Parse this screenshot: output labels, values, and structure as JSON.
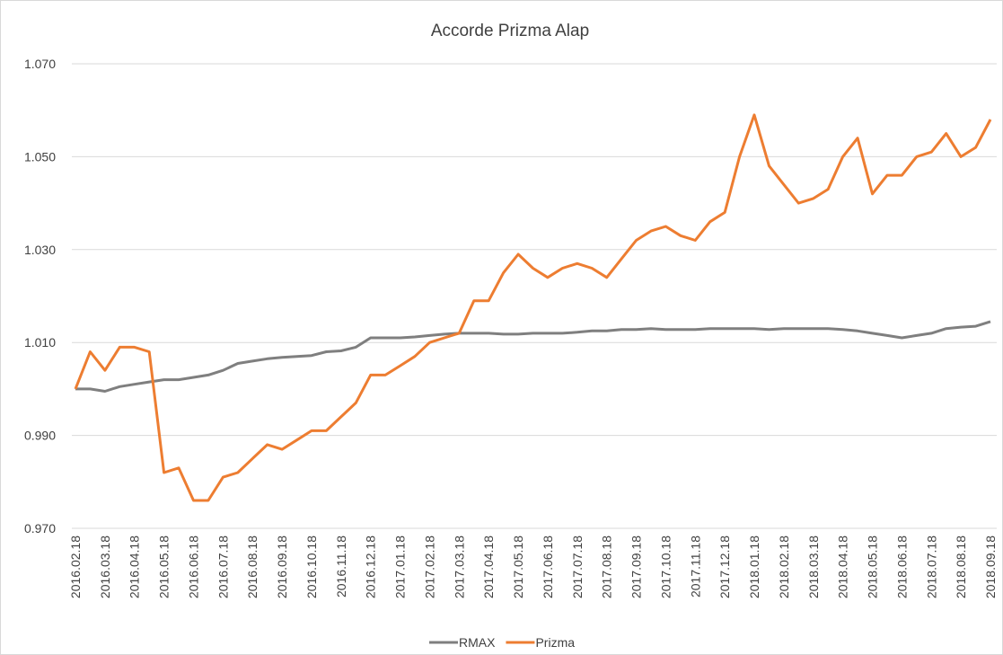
{
  "chart_data": {
    "type": "line",
    "title": "Accorde Prizma Alap",
    "categories": [
      "2016.02.18",
      null,
      "2016.03.18",
      null,
      "2016.04.18",
      null,
      "2016.05.18",
      null,
      "2016.06.18",
      null,
      "2016.07.18",
      null,
      "2016.08.18",
      null,
      "2016.09.18",
      null,
      "2016.10.18",
      null,
      "2016.11.18",
      null,
      "2016.12.18",
      null,
      "2017.01.18",
      null,
      "2017.02.18",
      null,
      "2017.03.18",
      null,
      "2017.04.18",
      null,
      "2017.05.18",
      null,
      "2017.06.18",
      null,
      "2017.07.18",
      null,
      "2017.08.18",
      null,
      "2017.09.18",
      null,
      "2017.10.18",
      null,
      "2017.11.18",
      null,
      "2017.12.18",
      null,
      "2018.01.18",
      null,
      "2018.02.18",
      null,
      "2018.03.18",
      null,
      "2018.04.18",
      null,
      "2018.05.18",
      null,
      "2018.06.18",
      null,
      "2018.07.18",
      null,
      "2018.08.18",
      null,
      "2018.09.18"
    ],
    "series": [
      {
        "name": "RMAX",
        "color": "#7f7f7f",
        "values": [
          1.0,
          1.0,
          0.9995,
          1.0005,
          1.001,
          1.0015,
          1.002,
          1.002,
          1.0025,
          1.003,
          1.004,
          1.0055,
          1.006,
          1.0065,
          1.0068,
          1.007,
          1.0072,
          1.008,
          1.0082,
          1.009,
          1.011,
          1.011,
          1.011,
          1.0112,
          1.0115,
          1.0118,
          1.012,
          1.012,
          1.012,
          1.0118,
          1.0118,
          1.012,
          1.012,
          1.012,
          1.0122,
          1.0125,
          1.0125,
          1.0128,
          1.0128,
          1.013,
          1.0128,
          1.0128,
          1.0128,
          1.013,
          1.013,
          1.013,
          1.013,
          1.0128,
          1.013,
          1.013,
          1.013,
          1.013,
          1.0128,
          1.0125,
          1.012,
          1.0115,
          1.011,
          1.0115,
          1.012,
          1.013,
          1.0133,
          1.0135,
          1.0145
        ]
      },
      {
        "name": "Prizma",
        "color": "#ed7d31",
        "values": [
          1.0,
          1.008,
          1.004,
          1.009,
          1.009,
          1.008,
          0.982,
          0.983,
          0.976,
          0.976,
          0.981,
          0.982,
          0.985,
          0.988,
          0.987,
          0.989,
          0.991,
          0.991,
          0.994,
          0.997,
          1.003,
          1.003,
          1.005,
          1.007,
          1.01,
          1.011,
          1.012,
          1.019,
          1.019,
          1.025,
          1.029,
          1.026,
          1.024,
          1.026,
          1.027,
          1.026,
          1.024,
          1.028,
          1.032,
          1.034,
          1.035,
          1.033,
          1.032,
          1.036,
          1.038,
          1.05,
          1.059,
          1.048,
          1.044,
          1.04,
          1.041,
          1.043,
          1.05,
          1.054,
          1.042,
          1.046,
          1.046,
          1.05,
          1.051,
          1.055,
          1.05,
          1.052,
          1.058
        ]
      }
    ],
    "ylim": [
      0.97,
      1.07
    ],
    "yticks": [
      {
        "value": 0.97,
        "label": "0.970"
      },
      {
        "value": 0.99,
        "label": "0.990"
      },
      {
        "value": 1.01,
        "label": "1.010"
      },
      {
        "value": 1.03,
        "label": "1.030"
      },
      {
        "value": 1.05,
        "label": "1.050"
      },
      {
        "value": 1.07,
        "label": "1.070"
      }
    ],
    "grid": true,
    "legend": "bottom"
  }
}
